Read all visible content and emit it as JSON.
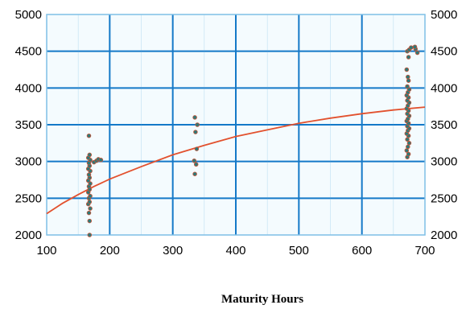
{
  "chart_data": {
    "type": "scatter",
    "title": "",
    "xlabel": "Maturity Hours",
    "ylabel": "",
    "xlim": [
      100,
      700
    ],
    "ylim": [
      2000,
      5000
    ],
    "x_ticks": [
      "100",
      "200",
      "300",
      "400",
      "500",
      "600",
      "700"
    ],
    "y_ticks": [
      "2000",
      "2500",
      "3000",
      "3500",
      "4000",
      "4500",
      "5000"
    ],
    "y_ticks_right": [
      "2000",
      "2500",
      "3000",
      "3500",
      "4000",
      "4500",
      "5000"
    ],
    "grid": true,
    "colors": {
      "plot_background": "#f4fbfe",
      "grid_major": "#1479c8",
      "grid_minor": "#5aaade",
      "frame": "#7fbfe6",
      "curve": "#e2512e",
      "marker_fill": "#2a7a7a",
      "marker_edge": "#c0553a"
    },
    "series": [
      {
        "kind": "points",
        "points": [
          [
            168,
            2000
          ],
          [
            168,
            2190
          ],
          [
            167,
            2300
          ],
          [
            169,
            2360
          ],
          [
            166,
            2420
          ],
          [
            168,
            2450
          ],
          [
            167,
            2500
          ],
          [
            169,
            2530
          ],
          [
            166,
            2580
          ],
          [
            168,
            2620
          ],
          [
            167,
            2660
          ],
          [
            169,
            2700
          ],
          [
            166,
            2740
          ],
          [
            168,
            2780
          ],
          [
            167,
            2820
          ],
          [
            169,
            2870
          ],
          [
            166,
            2900
          ],
          [
            168,
            2940
          ],
          [
            167,
            2980
          ],
          [
            169,
            3020
          ],
          [
            166,
            3050
          ],
          [
            168,
            3090
          ],
          [
            167,
            3350
          ],
          [
            175,
            2990
          ],
          [
            179,
            3010
          ],
          [
            182,
            3030
          ],
          [
            186,
            3020
          ]
        ]
      },
      {
        "kind": "points",
        "points": [
          [
            335,
            2830
          ],
          [
            337,
            2960
          ],
          [
            334,
            3010
          ],
          [
            338,
            3170
          ],
          [
            336,
            3400
          ],
          [
            339,
            3500
          ],
          [
            335,
            3600
          ]
        ]
      },
      {
        "kind": "points",
        "points": [
          [
            672,
            3060
          ],
          [
            674,
            3100
          ],
          [
            671,
            3150
          ],
          [
            673,
            3200
          ],
          [
            675,
            3250
          ],
          [
            672,
            3300
          ],
          [
            674,
            3350
          ],
          [
            671,
            3380
          ],
          [
            673,
            3420
          ],
          [
            675,
            3450
          ],
          [
            672,
            3480
          ],
          [
            674,
            3520
          ],
          [
            671,
            3550
          ],
          [
            673,
            3580
          ],
          [
            675,
            3620
          ],
          [
            672,
            3650
          ],
          [
            674,
            3690
          ],
          [
            671,
            3720
          ],
          [
            673,
            3760
          ],
          [
            675,
            3800
          ],
          [
            672,
            3830
          ],
          [
            674,
            3870
          ],
          [
            671,
            3900
          ],
          [
            673,
            3940
          ],
          [
            675,
            3980
          ],
          [
            672,
            4020
          ],
          [
            674,
            4100
          ],
          [
            673,
            4150
          ],
          [
            671,
            4250
          ],
          [
            674,
            4420
          ],
          [
            672,
            4500
          ],
          [
            675,
            4520
          ],
          [
            678,
            4550
          ],
          [
            685,
            4530
          ],
          [
            688,
            4480
          ],
          [
            684,
            4560
          ]
        ]
      },
      {
        "kind": "curve",
        "points": [
          [
            100,
            2290
          ],
          [
            125,
            2430
          ],
          [
            150,
            2550
          ],
          [
            175,
            2660
          ],
          [
            200,
            2760
          ],
          [
            250,
            2930
          ],
          [
            300,
            3090
          ],
          [
            350,
            3220
          ],
          [
            400,
            3340
          ],
          [
            450,
            3430
          ],
          [
            500,
            3520
          ],
          [
            550,
            3590
          ],
          [
            600,
            3650
          ],
          [
            650,
            3700
          ],
          [
            700,
            3740
          ]
        ]
      }
    ]
  }
}
